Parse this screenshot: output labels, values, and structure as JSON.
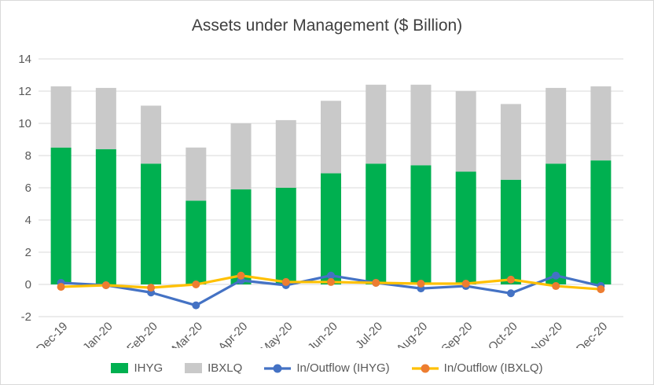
{
  "chart_data": {
    "type": "bar",
    "subtype": "stacked-bars-with-lines",
    "title": "Assets under Management ($ Billion)",
    "categories": [
      "Dec-19",
      "Jan-20",
      "Feb-20",
      "Mar-20",
      "Apr-20",
      "May-20",
      "Jun-20",
      "Jul-20",
      "Aug-20",
      "Sep-20",
      "Oct-20",
      "Nov-20",
      "Dec-20"
    ],
    "bar_series": [
      {
        "name": "IHYG",
        "color": "#00B050",
        "values": [
          8.5,
          8.4,
          7.5,
          5.2,
          5.9,
          6.0,
          6.9,
          7.5,
          7.4,
          7.0,
          6.5,
          7.5,
          7.7
        ]
      },
      {
        "name": "IBXLQ",
        "color": "#C9C9C9",
        "values": [
          3.8,
          3.8,
          3.6,
          3.3,
          4.1,
          4.2,
          4.5,
          4.9,
          5.0,
          5.0,
          4.7,
          4.7,
          4.6
        ]
      }
    ],
    "line_series": [
      {
        "name": "In/Outflow (IHYG)",
        "color": "#4472C4",
        "marker_color": "#4472C4",
        "values": [
          0.1,
          -0.05,
          -0.5,
          -1.3,
          0.25,
          -0.05,
          0.55,
          0.1,
          -0.25,
          -0.1,
          -0.55,
          0.55,
          -0.1
        ]
      },
      {
        "name": "In/Outflow (IBXLQ)",
        "color": "#FFC000",
        "marker_color": "#ED7D31",
        "values": [
          -0.15,
          -0.05,
          -0.2,
          0.0,
          0.55,
          0.15,
          0.15,
          0.1,
          0.05,
          0.05,
          0.3,
          -0.1,
          -0.3
        ]
      }
    ],
    "xlabel": "",
    "ylabel": "",
    "ylim": [
      -2,
      14
    ],
    "ytick_step": 2,
    "stacked": true,
    "grid": true,
    "legend_position": "bottom",
    "gridline_color": "#D9D9D9",
    "axis_text_color": "#595959",
    "title_color": "#404040"
  }
}
